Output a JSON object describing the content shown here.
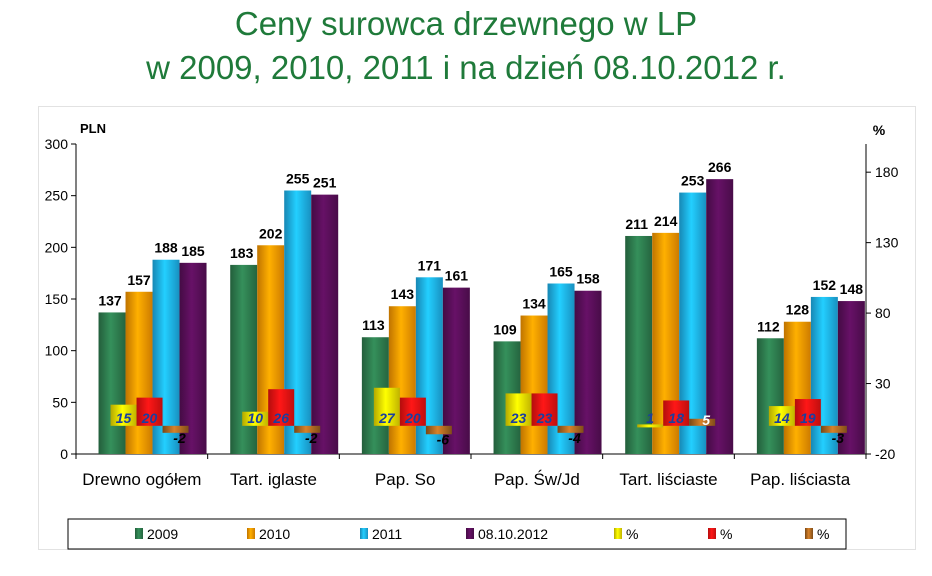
{
  "page": {
    "title_line1": "Ceny surowca drzewnego w LP",
    "title_line2": "w 2009, 2010, 2011 i na dzień 08.10.2012 r."
  },
  "chart_data": {
    "type": "bar",
    "categories": [
      "Drewno ogółem",
      "Tart. iglaste",
      "Pap. So",
      "Pap. Św/Jd",
      "Tart. liściaste",
      "Pap. liściasta"
    ],
    "ylabel": "PLN",
    "ylabel_right": "%",
    "ylim": [
      0,
      300
    ],
    "yticks": [
      0,
      50,
      100,
      150,
      200,
      250,
      300
    ],
    "ylim_right": [
      -20,
      200
    ],
    "yticks_right": [
      -20,
      30,
      80,
      130,
      180
    ],
    "grid": false,
    "legend_position": "bottom",
    "series": [
      {
        "name": "2009",
        "color": "#2e7d4f",
        "values": [
          137,
          183,
          113,
          109,
          211,
          112
        ],
        "labels": [
          "137",
          "183",
          "113",
          "109",
          "211",
          "112"
        ]
      },
      {
        "name": "2010",
        "color": "#ff9900",
        "values": [
          157,
          202,
          143,
          134,
          214,
          128
        ],
        "labels": [
          "157",
          "202",
          "143",
          "134",
          "214",
          "128"
        ]
      },
      {
        "name": "2011",
        "color": "#1eb4f0",
        "values": [
          188,
          255,
          171,
          165,
          253,
          152
        ],
        "labels": [
          "188",
          "255",
          "171",
          "165",
          "253",
          "152"
        ]
      },
      {
        "name": "08.10.2012",
        "color": "#5a0f5a",
        "values": [
          185,
          251,
          161,
          158,
          266,
          148
        ],
        "labels": [
          "185",
          "251",
          "161",
          "158",
          "266",
          "148"
        ]
      }
    ],
    "percent_series": [
      {
        "name": "%",
        "color": "#f0e000",
        "values": [
          15,
          10,
          27,
          23,
          1,
          14
        ],
        "labels": [
          "15",
          "10",
          "27",
          "23",
          "1",
          "14"
        ]
      },
      {
        "name": "%",
        "color": "#ee1111",
        "values": [
          20,
          26,
          20,
          23,
          18,
          19
        ],
        "labels": [
          "20",
          "26",
          "20",
          "23",
          "18",
          "19"
        ]
      },
      {
        "name": "%",
        "color": "#a0601e",
        "values": [
          -2,
          -2,
          -6,
          -4,
          5,
          -3
        ],
        "labels": [
          "-2",
          "-2",
          "-6",
          "-4",
          "5",
          "-3"
        ]
      }
    ]
  }
}
